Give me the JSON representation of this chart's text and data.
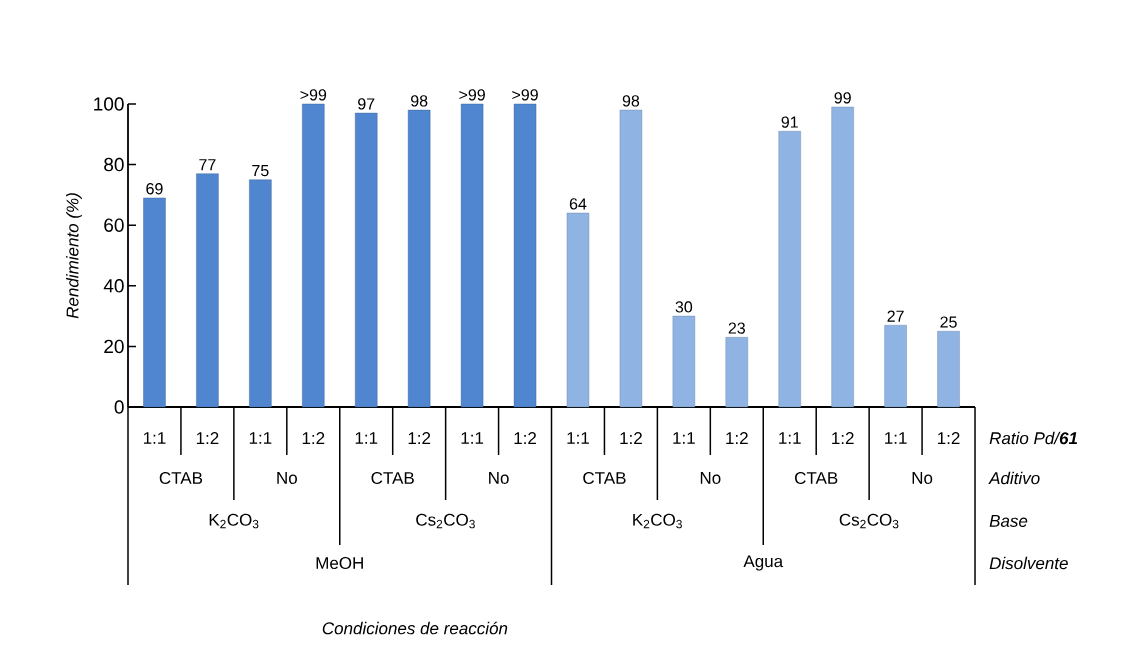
{
  "chart_data": {
    "type": "bar",
    "categories": [
      "1:1",
      "1:2",
      "1:1",
      "1:2",
      "1:1",
      "1:2",
      "1:1",
      "1:2",
      "1:1",
      "1:2",
      "1:1",
      "1:2",
      "1:1",
      "1:2",
      "1:1",
      "1:2"
    ],
    "values": [
      69,
      77,
      75,
      100,
      97,
      98,
      100,
      100,
      64,
      98,
      30,
      23,
      91,
      99,
      27,
      25
    ],
    "value_labels": [
      "69",
      "77",
      "75",
      ">99",
      "97",
      "98",
      ">99",
      ">99",
      "64",
      "98",
      "30",
      "23",
      "91",
      "99",
      "27",
      "25"
    ],
    "colors": [
      "#4f86cf",
      "#4f86cf",
      "#4f86cf",
      "#4f86cf",
      "#4f86cf",
      "#4f86cf",
      "#4f86cf",
      "#4f86cf",
      "#8fb4e3",
      "#8fb4e3",
      "#8fb4e3",
      "#8fb4e3",
      "#8fb4e3",
      "#8fb4e3",
      "#8fb4e3",
      "#8fb4e3"
    ],
    "ylim": [
      0,
      100
    ],
    "yticks": [
      0,
      20,
      40,
      60,
      80,
      100
    ],
    "ylabel": "Rendimiento (%)",
    "annotations": [
      "Ratio Pd/**61**",
      "Aditivo",
      "Base",
      "Disolvente",
      "CTAB",
      "No",
      "CTAB",
      "No",
      "CTAB",
      "No",
      "CTAB",
      "No",
      "K$_{2}$CO$_{3}$",
      "Cs$_{2}$CO$_{3}$",
      "K$_{2}$CO$_{3}$",
      "Cs$_{2}$CO$_{3}$",
      "MeOH",
      "Agua",
      "Condiciones de reacción"
    ]
  }
}
